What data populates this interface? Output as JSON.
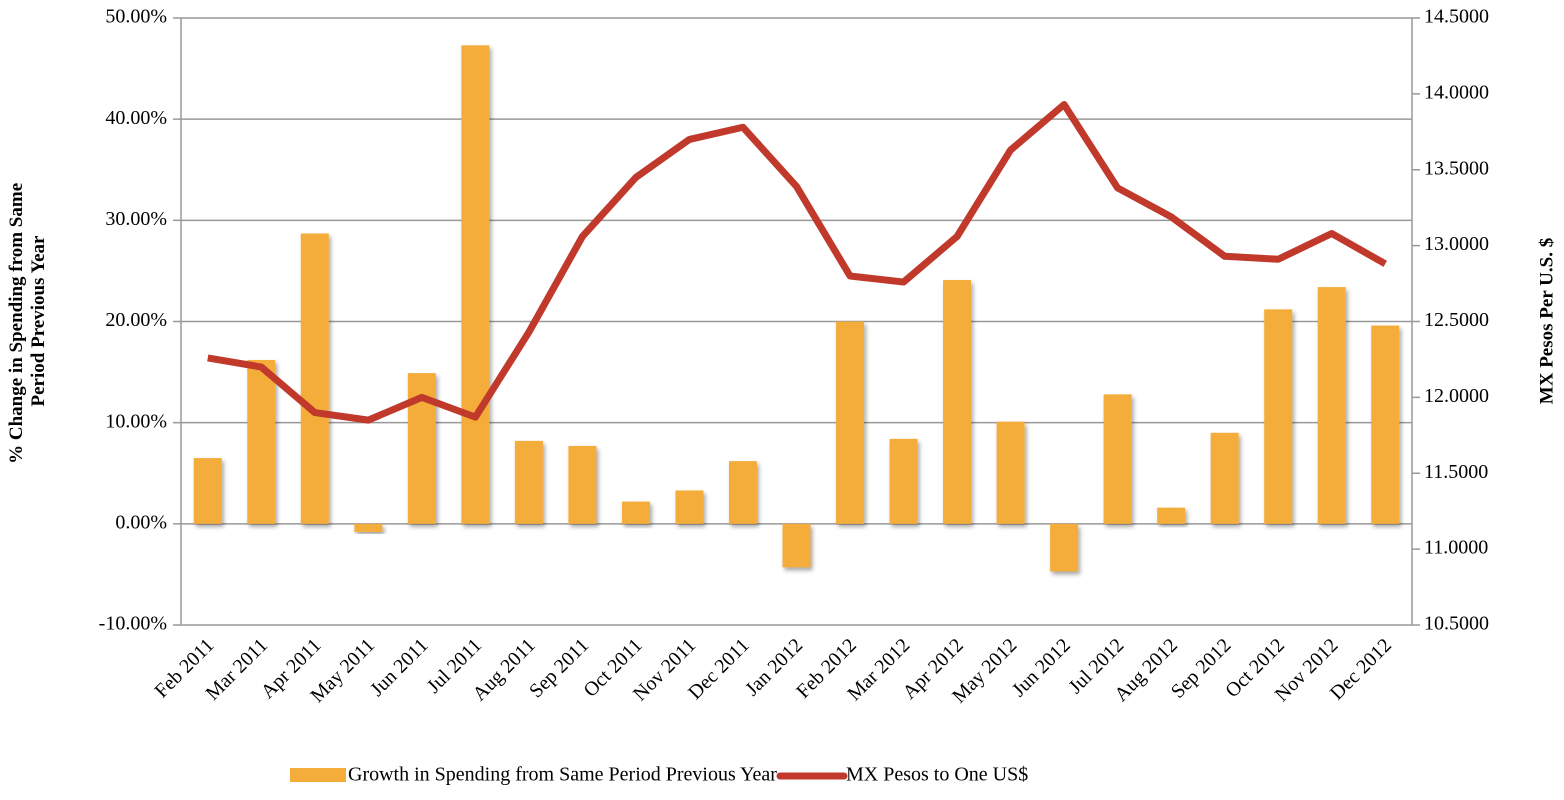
{
  "chart_data": {
    "type": "bar_line",
    "y_label": [
      "% Change in Spending from Same",
      "Period Previous Year"
    ],
    "y2_label": "MX Pesos Per U.S. $",
    "categories": [
      "Feb 2011",
      "Mar 2011",
      "Apr 2011",
      "May 2011",
      "Jun 2011",
      "Jul 2011",
      "Aug 2011",
      "Sep 2011",
      "Oct 2011",
      "Nov 2011",
      "Dec 2011",
      "Jan 2012",
      "Feb 2012",
      "Mar 2012",
      "Apr 2012",
      "May 2012",
      "Jun 2012",
      "Jul 2012",
      "Aug 2012",
      "Sep 2012",
      "Oct 2012",
      "Nov 2012",
      "Dec 2012"
    ],
    "series": [
      {
        "name": "Growth in Spending from Same Period Previous Year",
        "type": "bar",
        "color": "#f4ac3b",
        "values": [
          6.5,
          16.2,
          28.7,
          -0.8,
          14.9,
          47.3,
          8.2,
          7.7,
          2.2,
          3.3,
          6.2,
          -4.3,
          20.0,
          8.4,
          24.1,
          10.1,
          -4.7,
          12.8,
          1.6,
          9.0,
          21.2,
          23.4,
          19.6
        ]
      },
      {
        "name": "MX Pesos to One US$",
        "type": "line",
        "axis": "y2",
        "color": "#c0392b",
        "values": [
          12.26,
          12.2,
          11.9,
          11.85,
          12.0,
          11.87,
          12.43,
          13.06,
          13.45,
          13.7,
          13.78,
          13.39,
          12.8,
          12.76,
          13.06,
          13.63,
          13.93,
          13.38,
          13.19,
          12.93,
          12.91,
          13.08,
          12.88
        ]
      }
    ],
    "ylim": [
      -10,
      50
    ],
    "yticks": [
      {
        "value": -10,
        "label": "-10.00%"
      },
      {
        "value": 0,
        "label": "0.00%"
      },
      {
        "value": 10,
        "label": "10.00%"
      },
      {
        "value": 20,
        "label": "20.00%"
      },
      {
        "value": 30,
        "label": "30.00%"
      },
      {
        "value": 40,
        "label": "40.00%"
      },
      {
        "value": 50,
        "label": "50.00%"
      }
    ],
    "y2lim": [
      10.5,
      14.5
    ],
    "y2ticks": [
      {
        "value": 10.5,
        "label": "10.5000"
      },
      {
        "value": 11,
        "label": "11.0000"
      },
      {
        "value": 11.5,
        "label": "11.5000"
      },
      {
        "value": 12,
        "label": "12.0000"
      },
      {
        "value": 12.5,
        "label": "12.5000"
      },
      {
        "value": 13,
        "label": "13.0000"
      },
      {
        "value": 13.5,
        "label": "13.5000"
      },
      {
        "value": 14,
        "label": "14.0000"
      },
      {
        "value": 14.5,
        "label": "14.5000"
      }
    ],
    "grid": true,
    "legend": "bottom"
  }
}
